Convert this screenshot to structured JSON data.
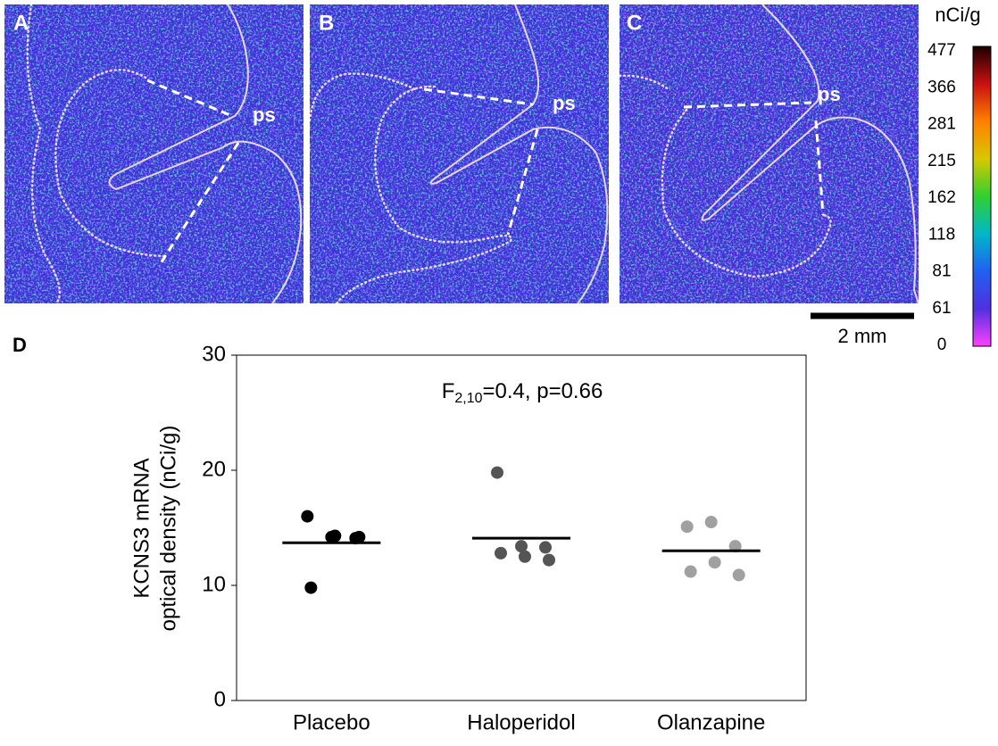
{
  "panels": [
    {
      "label": "A",
      "region": "ps"
    },
    {
      "label": "B",
      "region": "ps"
    },
    {
      "label": "C",
      "region": "ps"
    }
  ],
  "colorbar": {
    "unit": "nCi/g",
    "ticks": [
      477,
      366,
      281,
      215,
      162,
      118,
      81,
      61,
      0
    ],
    "colors": [
      "#1a0000",
      "#c81010",
      "#ff8000",
      "#d8c800",
      "#30d030",
      "#00b8c8",
      "#2060f0",
      "#5030e0",
      "#ff40ff"
    ]
  },
  "scale_bar": "2 mm",
  "chart_data": {
    "type": "scatter",
    "panel_label": "D",
    "annotation": {
      "main": "F",
      "sub": "2,10",
      "rest": "=0.4, p=0.66"
    },
    "y_label": [
      "KCNS3 mRNA",
      "optical density (nCi/g)"
    ],
    "categories": [
      "Placebo",
      "Haloperidol",
      "Olanzapine"
    ],
    "series": [
      {
        "color": "#000000",
        "values": [
          16.0,
          14.2,
          14.1,
          14.3,
          14.2,
          9.8
        ],
        "mean": 13.7
      },
      {
        "color": "#555555",
        "values": [
          19.8,
          13.4,
          13.3,
          12.5,
          12.2,
          12.8
        ],
        "mean": 14.1
      },
      {
        "color": "#a0a0a0",
        "values": [
          15.1,
          15.5,
          13.4,
          12.0,
          10.9,
          11.2
        ],
        "mean": 13.0
      }
    ],
    "mean_color": "#000000",
    "ylim": [
      0,
      30
    ],
    "yticks": [
      0,
      10,
      20,
      30
    ]
  }
}
